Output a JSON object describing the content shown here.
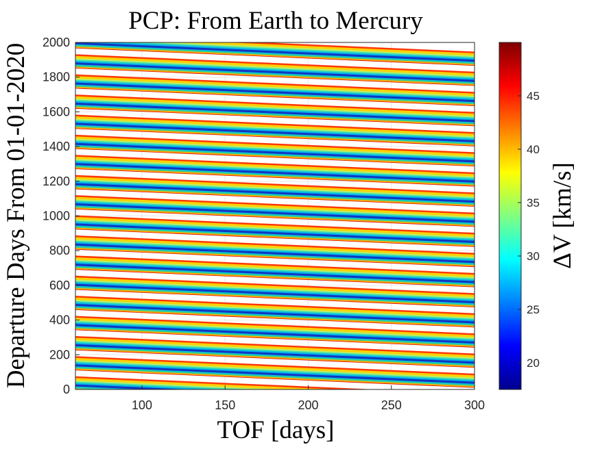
{
  "chart_data": {
    "type": "heatmap",
    "title": "PCP: From Earth to Mercury",
    "xlabel": "TOF [days]",
    "ylabel": "Departure Days From 01-01-2020",
    "colorbar_label": "ΔV [km/s]",
    "xlim": [
      60,
      300
    ],
    "ylim": [
      0,
      2000
    ],
    "xticks": [
      100,
      150,
      200,
      250,
      300
    ],
    "yticks": [
      0,
      200,
      400,
      600,
      800,
      1000,
      1200,
      1400,
      1600,
      1800,
      2000
    ],
    "clim": [
      17.5,
      50
    ],
    "cticks": [
      20,
      25,
      30,
      35,
      40,
      45
    ],
    "colormap": "jet",
    "grid": true,
    "colorbar_position": "right",
    "band_slope_days_per_tof_day": -0.42,
    "band_period_days": 116,
    "band_departure_at_tof_60": [
      35,
      151,
      267,
      383,
      499,
      615,
      731,
      847,
      963,
      1079,
      1195,
      1311,
      1427,
      1543,
      1659,
      1775,
      1891,
      2007
    ],
    "color_sequence": [
      "#d40000",
      "#ffb000",
      "#20d0a0",
      "#00b8f0",
      "#1030c0",
      "#00b8f0",
      "#40e0b0",
      "#c0f060",
      "#ffd000",
      "#ff3000"
    ]
  }
}
